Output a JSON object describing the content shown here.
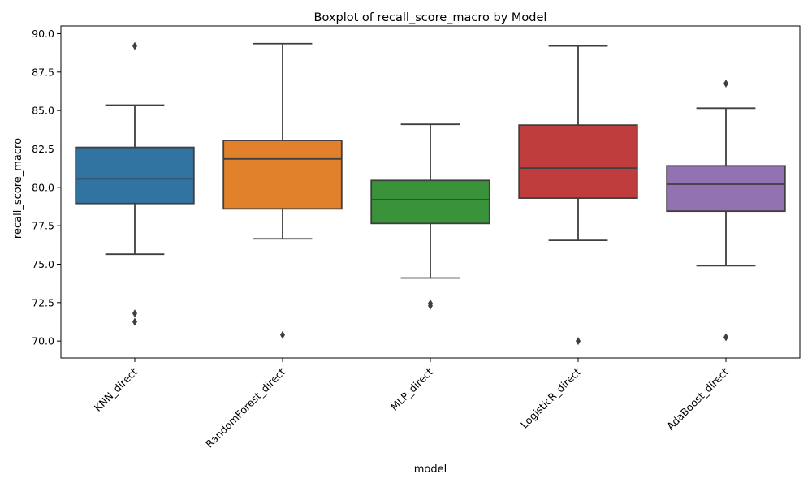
{
  "chart_data": {
    "type": "boxplot",
    "title": "Boxplot of recall_score_macro by Model",
    "xlabel": "model",
    "ylabel": "recall_score_macro",
    "ylim": [
      68.9,
      90.5
    ],
    "yticks": [
      70.0,
      72.5,
      75.0,
      77.5,
      80.0,
      82.5,
      85.0,
      87.5,
      90.0
    ],
    "ytick_labels": [
      "70.0",
      "72.5",
      "75.0",
      "77.5",
      "80.0",
      "82.5",
      "85.0",
      "87.5",
      "90.0"
    ],
    "grid": false,
    "categories": [
      "KNN_direct",
      "RandomForest_direct",
      "MLP_direct",
      "LogisticR_direct",
      "AdaBoost_direct"
    ],
    "boxes": [
      {
        "category": "KNN_direct",
        "color": "#3274a1",
        "whisker_low": 75.65,
        "q1": 78.95,
        "median": 80.55,
        "q3": 82.6,
        "whisker_high": 85.35,
        "outliers": [
          89.2,
          71.8,
          71.25
        ]
      },
      {
        "category": "RandomForest_direct",
        "color": "#e1812c",
        "whisker_low": 76.65,
        "q1": 78.6,
        "median": 81.85,
        "q3": 83.05,
        "whisker_high": 89.35,
        "outliers": [
          70.4
        ]
      },
      {
        "category": "MLP_direct",
        "color": "#3a923a",
        "whisker_low": 74.1,
        "q1": 77.65,
        "median": 79.2,
        "q3": 80.45,
        "whisker_high": 84.1,
        "outliers": [
          72.45,
          72.3
        ]
      },
      {
        "category": "LogisticR_direct",
        "color": "#c03d3e",
        "whisker_low": 76.55,
        "q1": 79.3,
        "median": 81.25,
        "q3": 84.05,
        "whisker_high": 89.2,
        "outliers": [
          70.0
        ]
      },
      {
        "category": "AdaBoost_direct",
        "color": "#9372b2",
        "whisker_low": 74.9,
        "q1": 78.45,
        "median": 80.2,
        "q3": 81.4,
        "whisker_high": 85.15,
        "outliers": [
          86.75,
          70.25
        ]
      }
    ]
  }
}
